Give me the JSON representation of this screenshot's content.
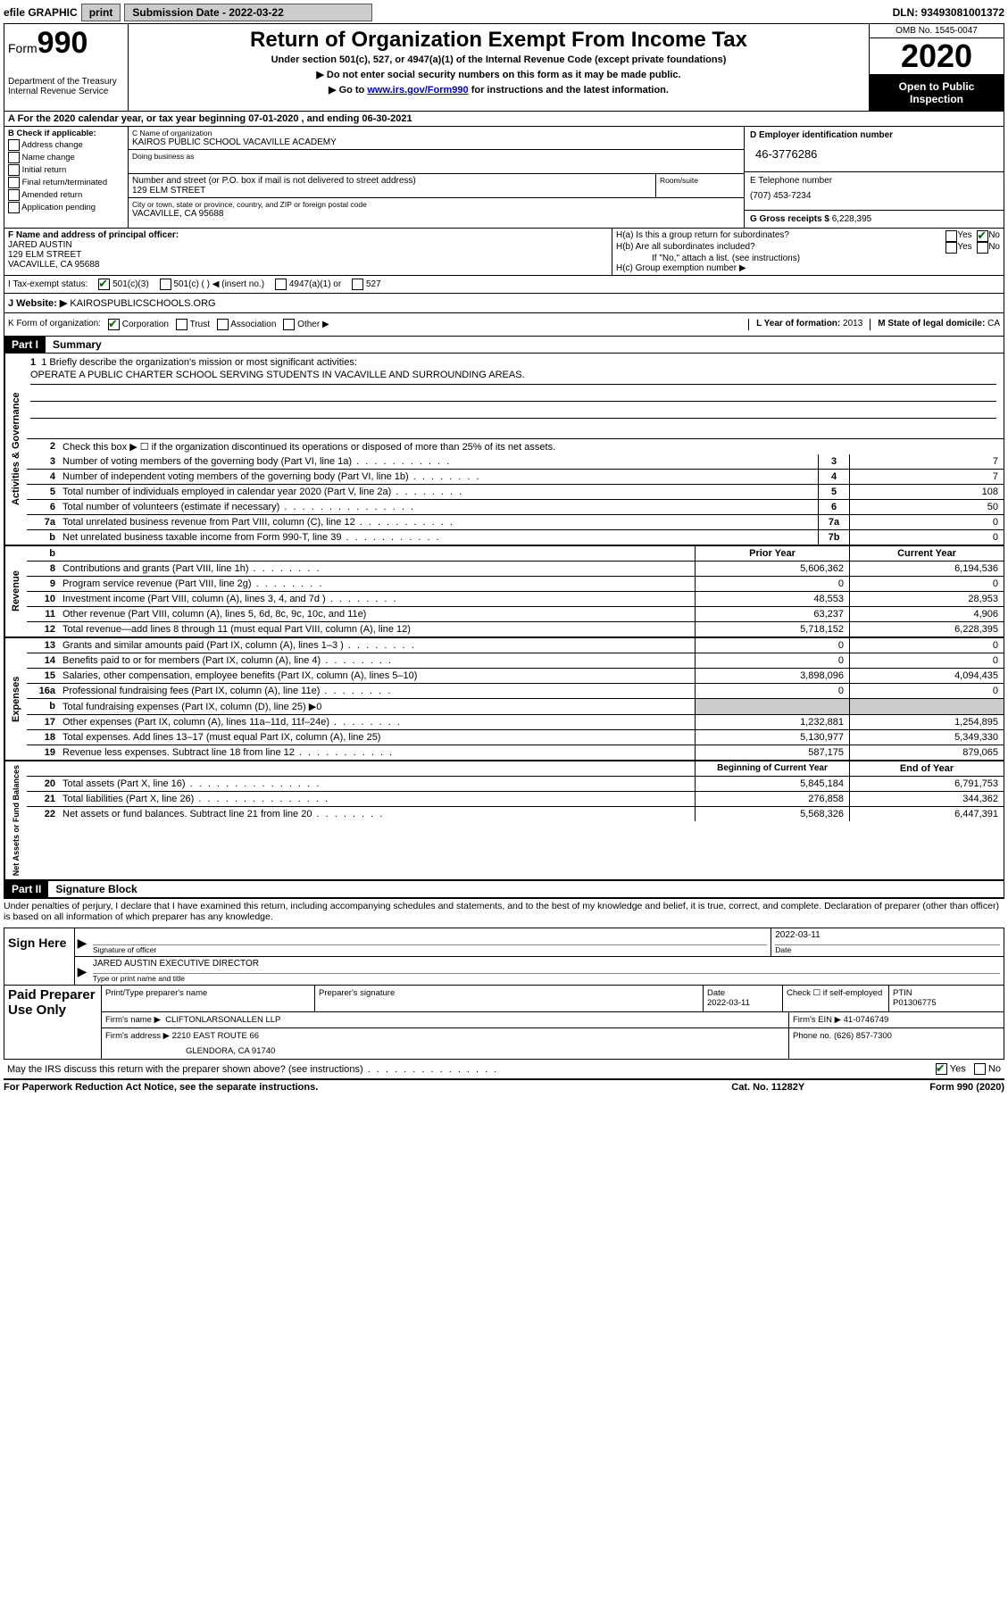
{
  "top": {
    "efile_label": "efile GRAPHIC",
    "print_btn": "print",
    "submission_label": "Submission Date - 2022-03-22",
    "dln": "DLN: 93493081001372"
  },
  "header": {
    "form_label": "Form",
    "form_num": "990",
    "dept": "Department of the Treasury",
    "irs": "Internal Revenue Service",
    "title": "Return of Organization Exempt From Income Tax",
    "subtitle": "Under section 501(c), 527, or 4947(a)(1) of the Internal Revenue Code (except private foundations)",
    "note1": "▶ Do not enter social security numbers on this form as it may be made public.",
    "note2_pre": "▶ Go to ",
    "note2_link": "www.irs.gov/Form990",
    "note2_post": " for instructions and the latest information.",
    "omb": "OMB No. 1545-0047",
    "year": "2020",
    "inspection": "Open to Public Inspection"
  },
  "line_a": "A   For the 2020 calendar year, or tax year beginning 07-01-2020     , and ending 06-30-2021",
  "box_b": {
    "title": "B Check if applicable:",
    "items": [
      "Address change",
      "Name change",
      "Initial return",
      "Final return/terminated",
      "Amended return",
      "Application pending"
    ]
  },
  "box_c": {
    "name_lbl": "C Name of organization",
    "name": "KAIROS PUBLIC SCHOOL VACAVILLE ACADEMY",
    "dba_lbl": "Doing business as",
    "addr_lbl": "Number and street (or P.O. box if mail is not delivered to street address)",
    "room_lbl": "Room/suite",
    "addr": "129 ELM STREET",
    "city_lbl": "City or town, state or province, country, and ZIP or foreign postal code",
    "city": "VACAVILLE, CA  95688"
  },
  "box_d": {
    "lbl": "D Employer identification number",
    "val": "46-3776286"
  },
  "box_e": {
    "lbl": "E Telephone number",
    "val": "(707) 453-7234"
  },
  "box_g": {
    "lbl": "G Gross receipts $",
    "val": "6,228,395"
  },
  "box_f": {
    "lbl": "F  Name and address of principal officer:",
    "name": "JARED AUSTIN",
    "addr1": "129 ELM STREET",
    "addr2": "VACAVILLE, CA  95688"
  },
  "box_h": {
    "ha": "H(a)  Is this a group return for subordinates?",
    "hb": "H(b)  Are all subordinates included?",
    "hb_note": "If \"No,\" attach a list. (see instructions)",
    "hc": "H(c)  Group exemption number ▶",
    "yes": "Yes",
    "no": "No"
  },
  "tax_status": {
    "lbl": "I   Tax-exempt status:",
    "o1": "501(c)(3)",
    "o2": "501(c) (   ) ◀ (insert no.)",
    "o3": "4947(a)(1) or",
    "o4": "527"
  },
  "website": {
    "lbl": "J   Website: ▶",
    "val": "KAIROSPUBLICSCHOOLS.ORG"
  },
  "line_k": {
    "lbl": "K Form of organization:",
    "corp": "Corporation",
    "trust": "Trust",
    "assoc": "Association",
    "other": "Other ▶",
    "l_lbl": "L Year of formation:",
    "l_val": "2013",
    "m_lbl": "M State of legal domicile:",
    "m_val": "CA"
  },
  "part1": {
    "header": "Part I",
    "title": "Summary",
    "vert_ag": "Activities & Governance",
    "vert_rev": "Revenue",
    "vert_exp": "Expenses",
    "vert_net": "Net Assets or Fund Balances",
    "l1_lbl": "1  Briefly describe the organization's mission or most significant activities:",
    "l1_val": "OPERATE A PUBLIC CHARTER SCHOOL SERVING STUDENTS IN VACAVILLE AND SURROUNDING AREAS.",
    "l2": "Check this box ▶ ☐  if the organization discontinued its operations or disposed of more than 25% of its net assets.",
    "lines_ag": [
      {
        "n": "3",
        "d": "Number of voting members of the governing body (Part VI, line 1a)",
        "box": "3",
        "v": "7",
        "dots": "dots-med"
      },
      {
        "n": "4",
        "d": "Number of independent voting members of the governing body (Part VI, line 1b)",
        "box": "4",
        "v": "7",
        "dots": "dots-short"
      },
      {
        "n": "5",
        "d": "Total number of individuals employed in calendar year 2020 (Part V, line 2a)",
        "box": "5",
        "v": "108",
        "dots": "dots-short"
      },
      {
        "n": "6",
        "d": "Total number of volunteers (estimate if necessary)",
        "box": "6",
        "v": "50",
        "dots": "dots"
      },
      {
        "n": "7a",
        "d": "Total unrelated business revenue from Part VIII, column (C), line 12",
        "box": "7a",
        "v": "0",
        "dots": "dots-med"
      },
      {
        "n": "b",
        "d": "Net unrelated business taxable income from Form 990-T, line 39",
        "box": "7b",
        "v": "0",
        "dots": "dots-med"
      }
    ],
    "prior_hdr": "Prior Year",
    "curr_hdr": "Current Year",
    "lines_rev": [
      {
        "n": "8",
        "d": "Contributions and grants (Part VIII, line 1h)",
        "p": "5,606,362",
        "c": "6,194,536",
        "dots": "dots-short"
      },
      {
        "n": "9",
        "d": "Program service revenue (Part VIII, line 2g)",
        "p": "0",
        "c": "0",
        "dots": "dots-short"
      },
      {
        "n": "10",
        "d": "Investment income (Part VIII, column (A), lines 3, 4, and 7d )",
        "p": "48,553",
        "c": "28,953",
        "dots": "dots-short"
      },
      {
        "n": "11",
        "d": "Other revenue (Part VIII, column (A), lines 5, 6d, 8c, 9c, 10c, and 11e)",
        "p": "63,237",
        "c": "4,906",
        "dots": ""
      },
      {
        "n": "12",
        "d": "Total revenue—add lines 8 through 11 (must equal Part VIII, column (A), line 12)",
        "p": "5,718,152",
        "c": "6,228,395",
        "dots": ""
      }
    ],
    "lines_exp": [
      {
        "n": "13",
        "d": "Grants and similar amounts paid (Part IX, column (A), lines 1–3 )",
        "p": "0",
        "c": "0",
        "dots": "dots-short"
      },
      {
        "n": "14",
        "d": "Benefits paid to or for members (Part IX, column (A), line 4)",
        "p": "0",
        "c": "0",
        "dots": "dots-short"
      },
      {
        "n": "15",
        "d": "Salaries, other compensation, employee benefits (Part IX, column (A), lines 5–10)",
        "p": "3,898,096",
        "c": "4,094,435",
        "dots": ""
      },
      {
        "n": "16a",
        "d": "Professional fundraising fees (Part IX, column (A), line 11e)",
        "p": "0",
        "c": "0",
        "dots": "dots-short"
      },
      {
        "n": "b",
        "d": "Total fundraising expenses (Part IX, column (D), line 25) ▶0",
        "p": "",
        "c": "",
        "dots": "",
        "shaded": true
      },
      {
        "n": "17",
        "d": "Other expenses (Part IX, column (A), lines 11a–11d, 11f–24e)",
        "p": "1,232,881",
        "c": "1,254,895",
        "dots": "dots-short"
      },
      {
        "n": "18",
        "d": "Total expenses. Add lines 13–17 (must equal Part IX, column (A), line 25)",
        "p": "5,130,977",
        "c": "5,349,330",
        "dots": ""
      },
      {
        "n": "19",
        "d": "Revenue less expenses. Subtract line 18 from line 12",
        "p": "587,175",
        "c": "879,065",
        "dots": "dots-med"
      }
    ],
    "beg_hdr": "Beginning of Current Year",
    "end_hdr": "End of Year",
    "lines_net": [
      {
        "n": "20",
        "d": "Total assets (Part X, line 16)",
        "p": "5,845,184",
        "c": "6,791,753",
        "dots": "dots"
      },
      {
        "n": "21",
        "d": "Total liabilities (Part X, line 26)",
        "p": "276,858",
        "c": "344,362",
        "dots": "dots"
      },
      {
        "n": "22",
        "d": "Net assets or fund balances. Subtract line 21 from line 20",
        "p": "5,568,326",
        "c": "6,447,391",
        "dots": "dots-short"
      }
    ]
  },
  "part2": {
    "header": "Part II",
    "title": "Signature Block",
    "disclaimer": "Under penalties of perjury, I declare that I have examined this return, including accompanying schedules and statements, and to the best of my knowledge and belief, it is true, correct, and complete. Declaration of preparer (other than officer) is based on all information of which preparer has any knowledge.",
    "sign_here": "Sign Here",
    "sig_officer_lbl": "Signature of officer",
    "sig_date_lbl": "Date",
    "sig_date": "2022-03-11",
    "officer_name": "JARED AUSTIN  EXECUTIVE DIRECTOR",
    "officer_lbl": "Type or print name and title",
    "paid_prep": "Paid Preparer Use Only",
    "prep_name_lbl": "Print/Type preparer's name",
    "prep_sig_lbl": "Preparer's signature",
    "prep_date_lbl": "Date",
    "prep_date": "2022-03-11",
    "prep_check_lbl": "Check ☐  if self-employed",
    "ptin_lbl": "PTIN",
    "ptin": "P01306775",
    "firm_name_lbl": "Firm's name    ▶",
    "firm_name": "CLIFTONLARSONALLEN LLP",
    "firm_ein_lbl": "Firm's EIN ▶",
    "firm_ein": "41-0746749",
    "firm_addr_lbl": "Firm's address ▶",
    "firm_addr1": "2210 EAST ROUTE 66",
    "firm_addr2": "GLENDORA, CA  91740",
    "phone_lbl": "Phone no.",
    "phone": "(626) 857-7300",
    "discuss": "May the IRS discuss this return with the preparer shown above? (see instructions)",
    "discuss_yes": "Yes",
    "discuss_no": "No"
  },
  "footer": {
    "left": "For Paperwork Reduction Act Notice, see the separate instructions.",
    "mid": "Cat. No. 11282Y",
    "right": "Form 990 (2020)"
  }
}
